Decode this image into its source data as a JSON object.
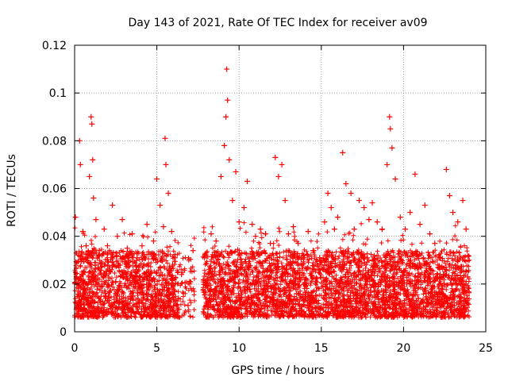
{
  "chart_data": {
    "type": "scatter",
    "title": "Day 143 of 2021, Rate Of TEC Index for receiver av09",
    "xlabel": "GPS time / hours",
    "ylabel": "ROTI / TECUs",
    "xlim": [
      0,
      25
    ],
    "ylim": [
      0,
      0.12
    ],
    "x_ticks": [
      "0",
      "5",
      "10",
      "15",
      "20",
      "25"
    ],
    "y_ticks": [
      "0",
      "0.02",
      "0.04",
      "0.06",
      "0.08",
      "0.1",
      "0.12"
    ],
    "grid": true,
    "marker": "+",
    "color": "#ff0000",
    "data_gap_hours": [
      7.3,
      7.8
    ],
    "series": [
      {
        "points": [
          [
            0.05,
            0.048
          ],
          [
            0.2,
            0.022
          ],
          [
            0.3,
            0.08
          ],
          [
            0.35,
            0.07
          ],
          [
            0.5,
            0.042
          ],
          [
            0.7,
            0.036
          ],
          [
            0.9,
            0.065
          ],
          [
            1.0,
            0.09
          ],
          [
            1.05,
            0.087
          ],
          [
            1.1,
            0.072
          ],
          [
            1.15,
            0.056
          ],
          [
            1.3,
            0.047
          ],
          [
            1.5,
            0.034
          ],
          [
            1.8,
            0.043
          ],
          [
            2.0,
            0.036
          ],
          [
            2.3,
            0.053
          ],
          [
            2.6,
            0.04
          ],
          [
            2.9,
            0.047
          ],
          [
            3.2,
            0.035
          ],
          [
            3.5,
            0.041
          ],
          [
            3.8,
            0.031
          ],
          [
            4.1,
            0.036
          ],
          [
            4.4,
            0.045
          ],
          [
            4.8,
            0.038
          ],
          [
            5.0,
            0.064
          ],
          [
            5.2,
            0.053
          ],
          [
            5.4,
            0.044
          ],
          [
            5.5,
            0.081
          ],
          [
            5.55,
            0.07
          ],
          [
            5.7,
            0.058
          ],
          [
            5.9,
            0.042
          ],
          [
            6.1,
            0.031
          ],
          [
            6.5,
            0.024
          ],
          [
            7.0,
            0.02
          ],
          [
            7.2,
            0.034
          ],
          [
            7.9,
            0.031
          ],
          [
            8.3,
            0.041
          ],
          [
            8.6,
            0.038
          ],
          [
            8.9,
            0.065
          ],
          [
            9.1,
            0.078
          ],
          [
            9.2,
            0.09
          ],
          [
            9.25,
            0.11
          ],
          [
            9.3,
            0.097
          ],
          [
            9.4,
            0.072
          ],
          [
            9.6,
            0.055
          ],
          [
            9.8,
            0.067
          ],
          [
            10.0,
            0.046
          ],
          [
            10.3,
            0.052
          ],
          [
            10.5,
            0.063
          ],
          [
            10.8,
            0.045
          ],
          [
            11.0,
            0.04
          ],
          [
            11.3,
            0.043
          ],
          [
            11.6,
            0.041
          ],
          [
            11.9,
            0.037
          ],
          [
            12.2,
            0.073
          ],
          [
            12.4,
            0.065
          ],
          [
            12.6,
            0.07
          ],
          [
            12.8,
            0.055
          ],
          [
            13.0,
            0.041
          ],
          [
            13.3,
            0.044
          ],
          [
            13.6,
            0.037
          ],
          [
            13.9,
            0.031
          ],
          [
            14.2,
            0.042
          ],
          [
            14.5,
            0.034
          ],
          [
            14.9,
            0.031
          ],
          [
            15.2,
            0.046
          ],
          [
            15.4,
            0.058
          ],
          [
            15.6,
            0.052
          ],
          [
            15.8,
            0.043
          ],
          [
            16.0,
            0.048
          ],
          [
            16.3,
            0.075
          ],
          [
            16.5,
            0.062
          ],
          [
            16.8,
            0.058
          ],
          [
            17.0,
            0.043
          ],
          [
            17.3,
            0.055
          ],
          [
            17.6,
            0.052
          ],
          [
            17.9,
            0.047
          ],
          [
            18.1,
            0.054
          ],
          [
            18.4,
            0.046
          ],
          [
            18.7,
            0.043
          ],
          [
            19.0,
            0.07
          ],
          [
            19.15,
            0.09
          ],
          [
            19.2,
            0.085
          ],
          [
            19.3,
            0.077
          ],
          [
            19.5,
            0.064
          ],
          [
            19.8,
            0.048
          ],
          [
            20.1,
            0.043
          ],
          [
            20.4,
            0.05
          ],
          [
            20.7,
            0.066
          ],
          [
            21.0,
            0.045
          ],
          [
            21.3,
            0.053
          ],
          [
            21.6,
            0.041
          ],
          [
            21.9,
            0.037
          ],
          [
            22.2,
            0.031
          ],
          [
            22.6,
            0.068
          ],
          [
            22.8,
            0.057
          ],
          [
            23.0,
            0.05
          ],
          [
            23.3,
            0.046
          ],
          [
            23.6,
            0.055
          ],
          [
            23.8,
            0.043
          ],
          [
            23.9,
            0.023
          ],
          [
            0.1,
            0.012
          ],
          [
            0.6,
            0.018
          ],
          [
            1.2,
            0.025
          ],
          [
            1.9,
            0.015
          ],
          [
            2.5,
            0.021
          ],
          [
            3.1,
            0.013
          ],
          [
            3.7,
            0.019
          ],
          [
            4.3,
            0.024
          ],
          [
            4.9,
            0.016
          ],
          [
            5.6,
            0.022
          ],
          [
            6.3,
            0.014
          ],
          [
            6.9,
            0.011
          ],
          [
            8.1,
            0.019
          ],
          [
            8.8,
            0.024
          ],
          [
            9.5,
            0.017
          ],
          [
            10.2,
            0.027
          ],
          [
            10.9,
            0.015
          ],
          [
            11.5,
            0.021
          ],
          [
            12.1,
            0.018
          ],
          [
            12.9,
            0.026
          ],
          [
            13.5,
            0.016
          ],
          [
            14.1,
            0.02
          ],
          [
            14.7,
            0.013
          ],
          [
            15.3,
            0.022
          ],
          [
            15.9,
            0.017
          ],
          [
            16.6,
            0.025
          ],
          [
            17.2,
            0.015
          ],
          [
            17.8,
            0.021
          ],
          [
            18.3,
            0.019
          ],
          [
            18.9,
            0.027
          ],
          [
            19.6,
            0.016
          ],
          [
            20.2,
            0.02
          ],
          [
            20.9,
            0.014
          ],
          [
            21.5,
            0.023
          ],
          [
            22.1,
            0.016
          ],
          [
            22.7,
            0.012
          ],
          [
            23.2,
            0.018
          ],
          [
            23.7,
            0.014
          ]
        ]
      }
    ]
  }
}
